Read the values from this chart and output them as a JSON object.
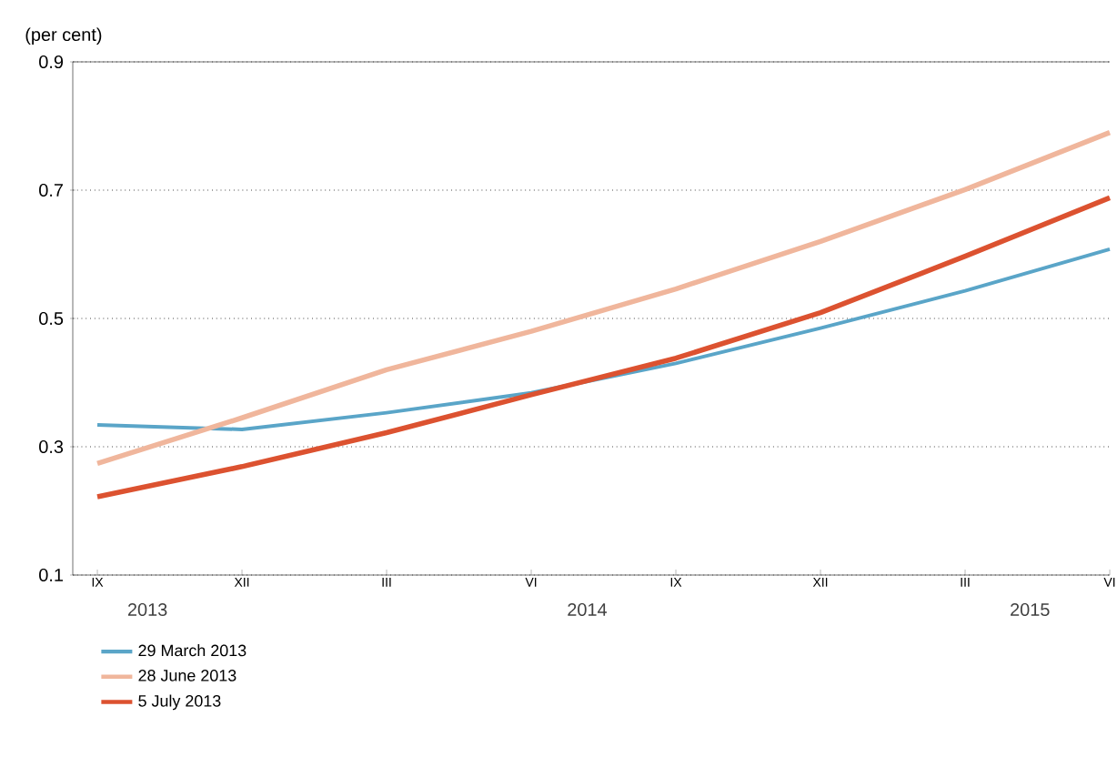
{
  "chart_data": {
    "type": "line",
    "ylabel": "(per cent)",
    "categories": [
      "IX",
      "XII",
      "III",
      "VI",
      "IX",
      "XII",
      "III",
      "VI"
    ],
    "series": [
      {
        "name": "29 March 2013",
        "color": "#5aa5c8",
        "values": [
          0.334,
          0.327,
          0.353,
          0.384,
          0.43,
          0.485,
          0.543,
          0.608
        ]
      },
      {
        "name": "28 June 2013",
        "color": "#f0b69c",
        "values": [
          0.274,
          0.345,
          0.42,
          0.48,
          0.546,
          0.62,
          0.701,
          0.79
        ]
      },
      {
        "name": "5 July 2013",
        "color": "#dc5230",
        "values": [
          0.222,
          0.269,
          0.322,
          0.381,
          0.438,
          0.509,
          0.597,
          0.688
        ]
      }
    ],
    "ylim": [
      0.1,
      0.9
    ],
    "yticks": [
      0.1,
      0.3,
      0.5,
      0.7,
      0.9
    ],
    "annotations": [
      "2013",
      "2014",
      "2015"
    ],
    "grid": "y",
    "legend": "bottom",
    "marker": "none",
    "line_style": "solid"
  }
}
